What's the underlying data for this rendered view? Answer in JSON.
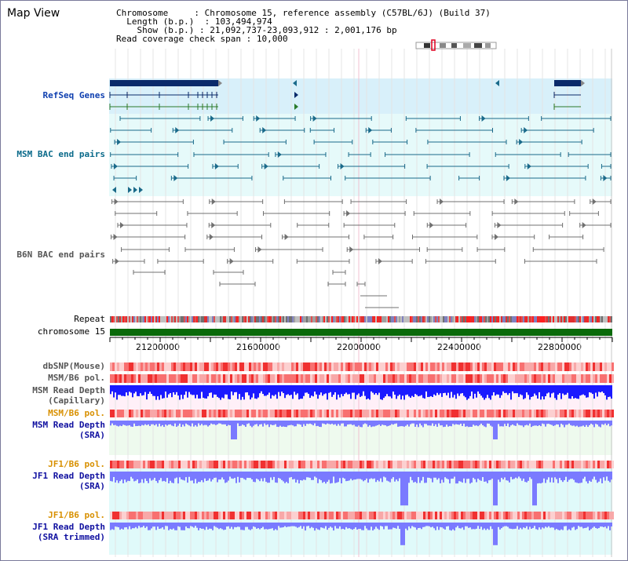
{
  "title": "Map View",
  "info": {
    "chromosome_label": "Chromosome",
    "chromosome_value": "Chromosome 15, reference assembly (C57BL/6J) (Build 37)",
    "length_label": "Length (b.p.)",
    "length_value": "103,494,974",
    "show_label": "Show (b.p.)",
    "show_value": "21,092,737-23,093,912 : 2,001,176 bp",
    "coverage_label": "Read coverage check span",
    "coverage_value": "10,000"
  },
  "tracks": {
    "refseq": "RefSeq Genes",
    "msm_bac": "MSM BAC end pairs",
    "b6n_bac": "B6N BAC end pairs",
    "repeat": "Repeat",
    "chromosome": "chromosome 15",
    "dbsnp": "dbSNP(Mouse)",
    "msm_b6_pol_1": "MSM/B6 pol.",
    "msm_read_depth_cap_1": "MSM Read Depth",
    "msm_read_depth_cap_2": "(Capillary)",
    "msm_b6_pol_2": "MSM/B6 pol.",
    "msm_read_depth_sra_1": "MSM Read Depth",
    "msm_read_depth_sra_2": "(SRA)",
    "jf1_b6_pol_1": "JF1/B6 pol.",
    "jf1_read_depth_1": "JF1 Read Depth",
    "jf1_read_depth_2": "(SRA)",
    "jf1_b6_pol_2": "JF1/B6 pol.",
    "jf1_read_depth_trim_1": "JF1 Read Depth",
    "jf1_read_depth_trim_2": "(SRA trimmed)"
  },
  "axis_ticks": [
    "21200000",
    "21600000",
    "22000000",
    "22400000",
    "22800000"
  ],
  "colors": {
    "refseq_bar": "#0a2a6a",
    "msm_bac": "#1a6a8a",
    "b6n_bac": "#707070",
    "chromosome_bar": "#0a6a0a",
    "read_depth": "#1a1aff",
    "read_depth_light": "#7a7aff",
    "pol": "#ff6060"
  }
}
